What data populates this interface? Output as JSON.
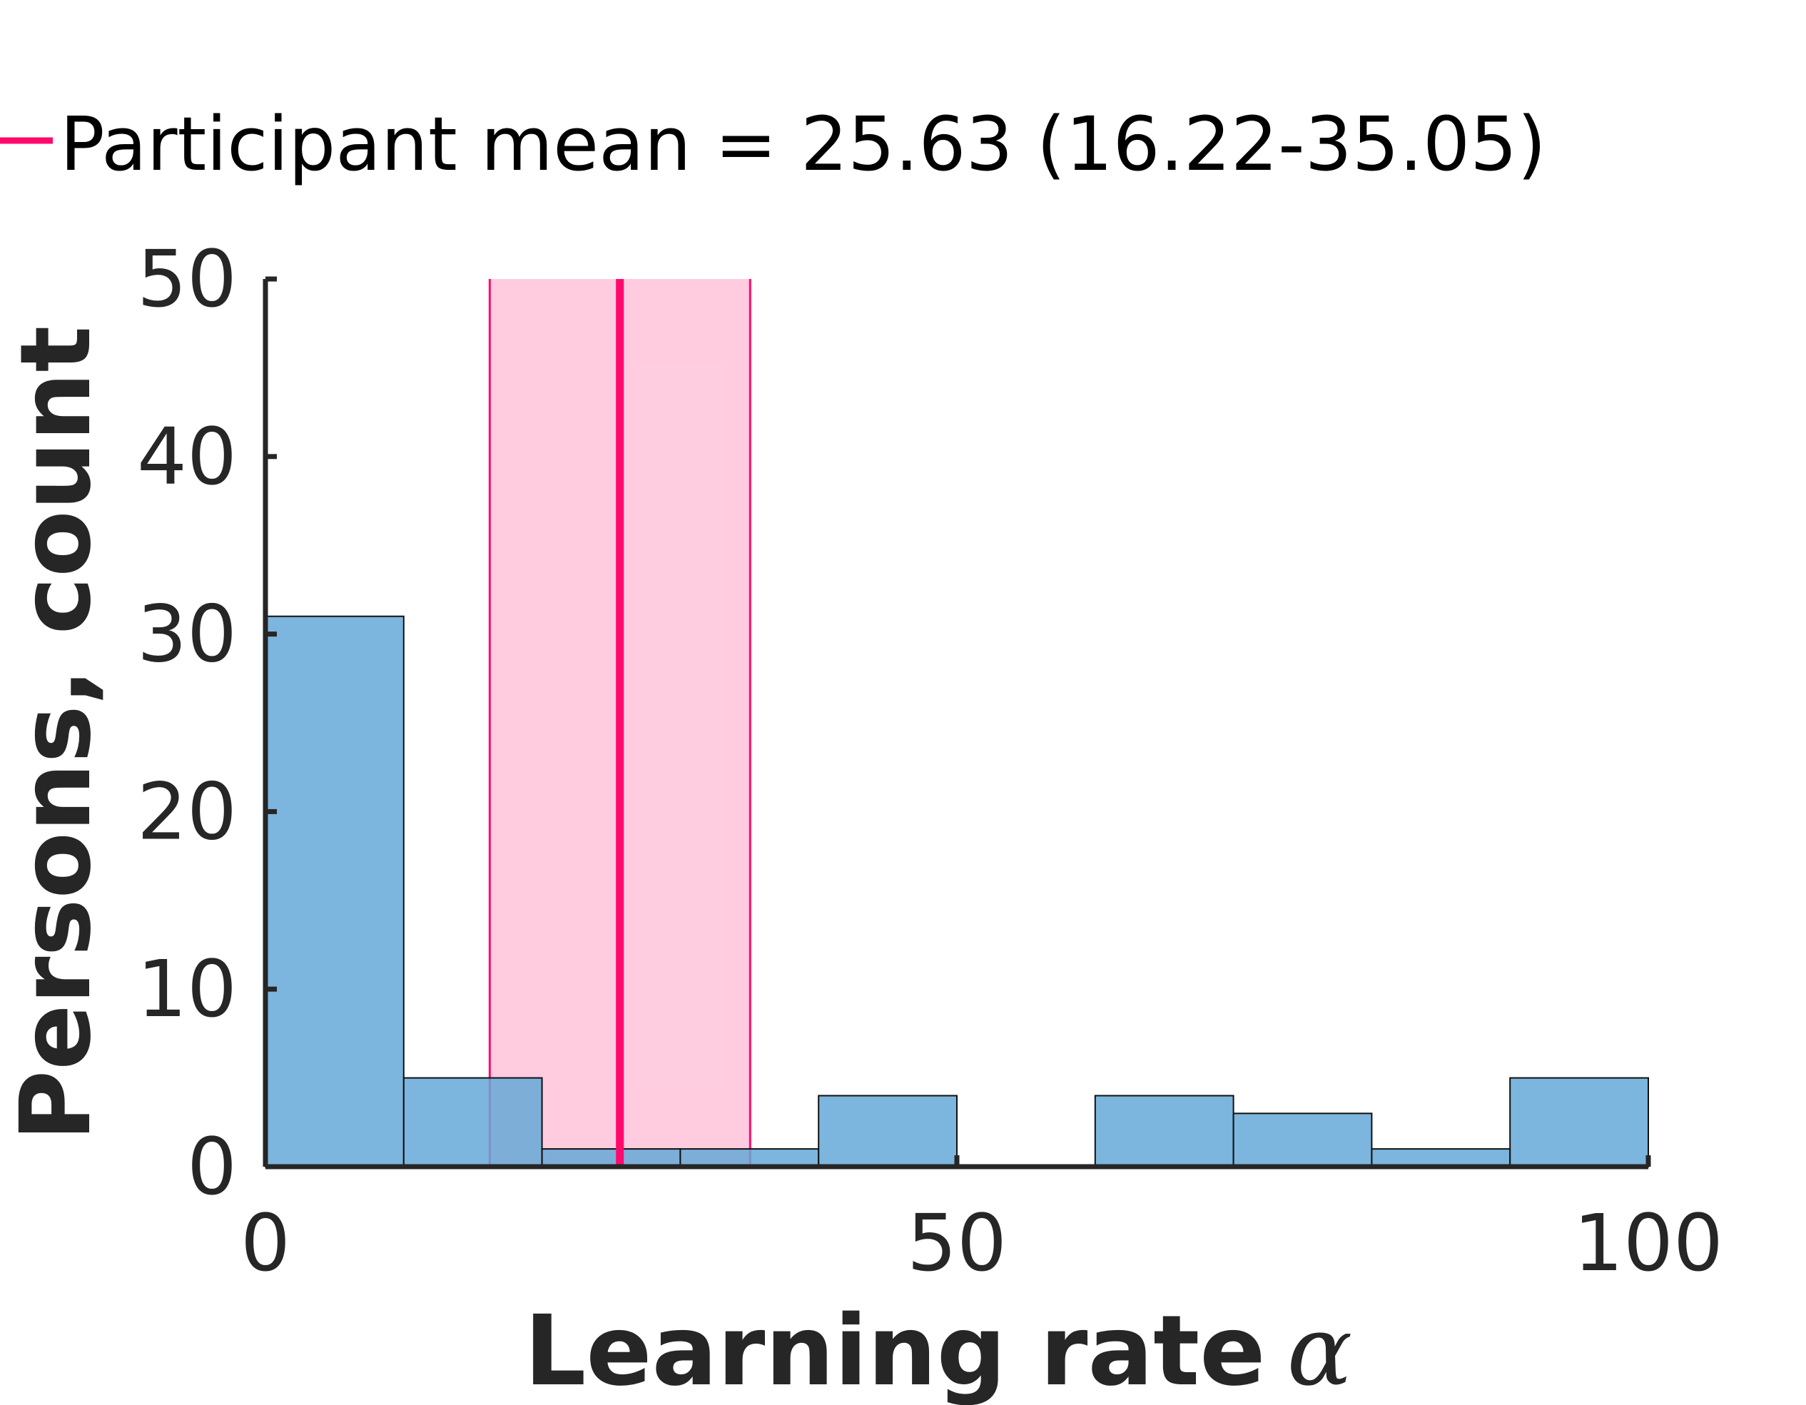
{
  "chart_data": {
    "type": "bar",
    "subtype": "histogram",
    "title": "",
    "xlabel": "Learning rate",
    "xlabel_symbol": "α",
    "ylabel": "Persons, count",
    "xlim": [
      0,
      100
    ],
    "ylim": [
      0,
      50
    ],
    "xticks": [
      0,
      50,
      100
    ],
    "yticks": [
      0,
      10,
      20,
      30,
      40,
      50
    ],
    "bin_width": 10,
    "bin_edges": [
      0,
      10,
      20,
      30,
      40,
      50,
      60,
      70,
      80,
      90,
      100
    ],
    "values": [
      31,
      5,
      1,
      1,
      4,
      0,
      4,
      3,
      1,
      5
    ],
    "grid": false,
    "legend_position": "top-left, outside plot",
    "mean_line": {
      "label": "Participant mean = 25.63 (16.22-35.05)",
      "mean": 25.63,
      "ci_low": 16.22,
      "ci_high": 35.05
    },
    "colors": {
      "bar_fill": "#65a8d7",
      "bar_stroke": "#111111",
      "mean_line": "#ff0a6c",
      "ci_band": "#ff8fb8",
      "axis": "#262626",
      "text": "#262626",
      "legend_text": "#000000"
    }
  }
}
